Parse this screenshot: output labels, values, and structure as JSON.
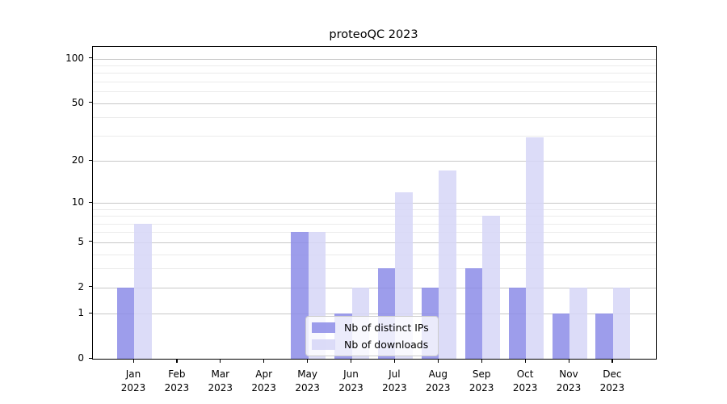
{
  "chart_data": {
    "type": "bar",
    "title": "proteoQC 2023",
    "categories": [
      "Jan",
      "Feb",
      "Mar",
      "Apr",
      "May",
      "Jun",
      "Jul",
      "Aug",
      "Sep",
      "Oct",
      "Nov",
      "Dec"
    ],
    "year_label": "2023",
    "series": [
      {
        "name": "Nb of distinct IPs",
        "color": "rgba(140,140,232,0.85)",
        "values": [
          2,
          0,
          0,
          0,
          6,
          1,
          3,
          2,
          3,
          2,
          1,
          1
        ]
      },
      {
        "name": "Nb of downloads",
        "color": "rgba(214,214,247,0.85)",
        "values": [
          7,
          0,
          0,
          0,
          6,
          2,
          12,
          17,
          8,
          29,
          2,
          2
        ]
      }
    ],
    "xlabel": "",
    "ylabel": "",
    "scale": "log1p",
    "ylim": [
      0,
      120
    ],
    "y_major_ticks": [
      0,
      1,
      2,
      5,
      10,
      20,
      50,
      100
    ],
    "y_minor_ticks": [
      3,
      4,
      6,
      7,
      8,
      9,
      30,
      40,
      60,
      70,
      80,
      90
    ],
    "grid": "both",
    "legend_position": "lower-center-inside",
    "colors": {
      "major_grid": "#c8c8c8",
      "minor_grid": "#ebebeb",
      "spine": "#000000",
      "text": "#000000",
      "background": "#ffffff"
    }
  }
}
